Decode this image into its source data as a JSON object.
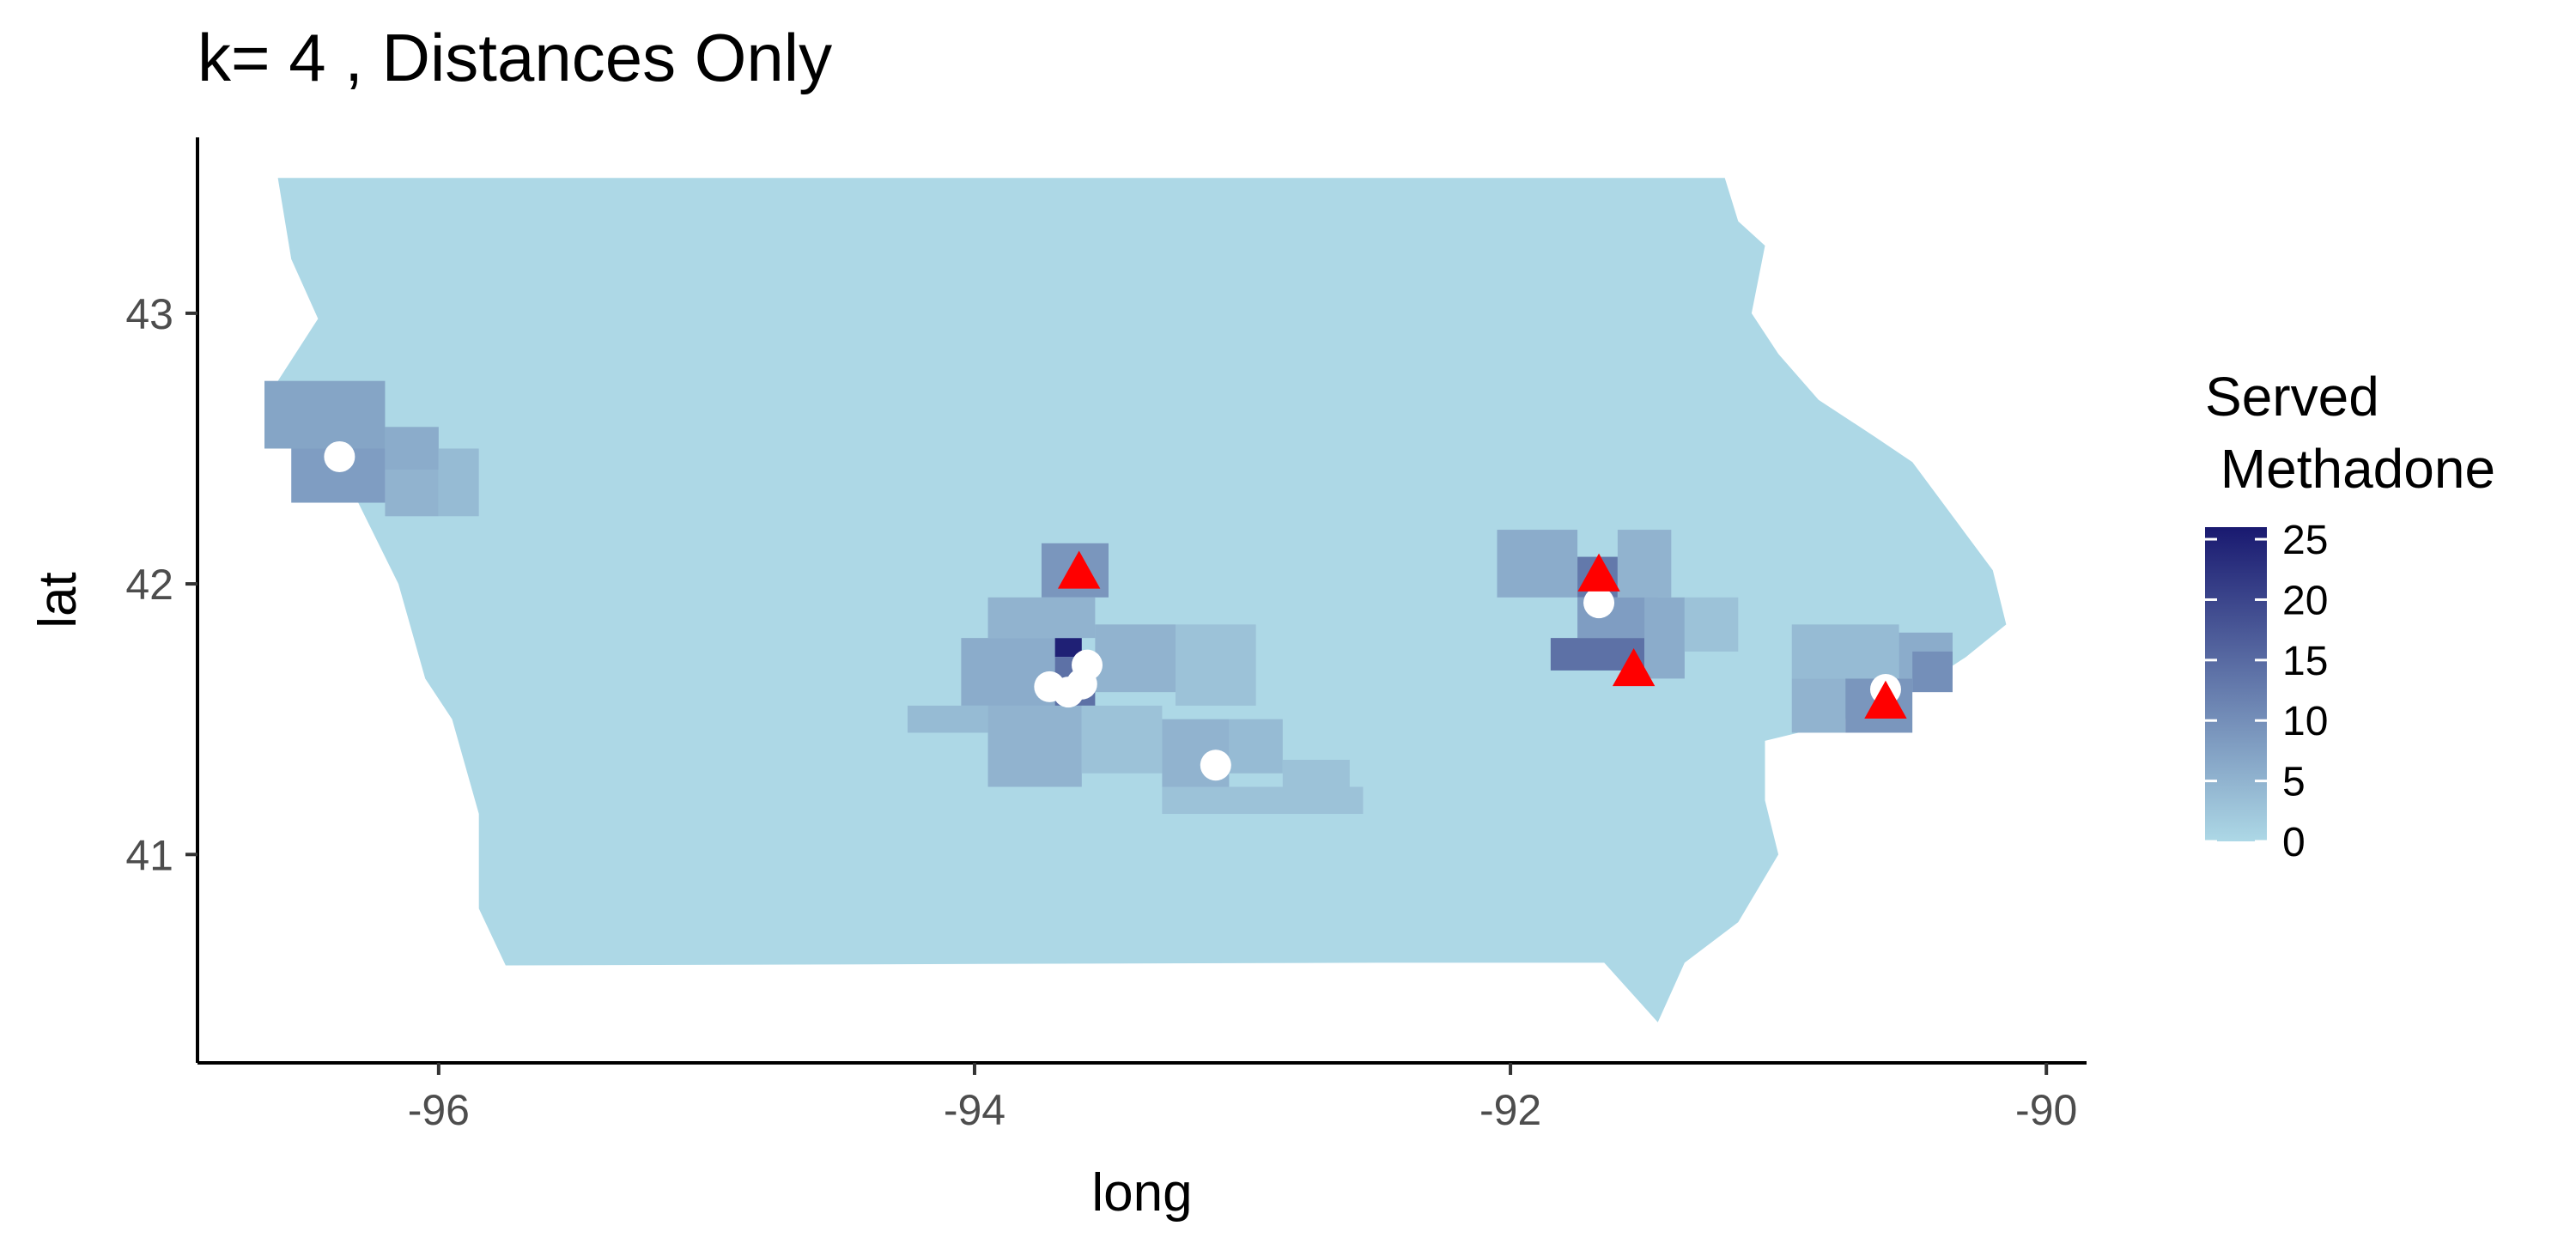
{
  "chart_data": {
    "type": "choropleth-map",
    "title": "k= 4 , Distances Only",
    "xlabel": "long",
    "ylabel": "lat",
    "xlim": [
      -96.9,
      -89.85
    ],
    "ylim": [
      40.23,
      43.65
    ],
    "x_ticks": [
      -96,
      -94,
      -92,
      -90
    ],
    "x_tick_labels": [
      "-96",
      "-94",
      "-92",
      "-90"
    ],
    "y_ticks": [
      41,
      42,
      43
    ],
    "y_tick_labels": [
      "41",
      "42",
      "43"
    ],
    "grid": false,
    "legend": {
      "title_lines": [
        "Served",
        " Methadone"
      ],
      "position": "right",
      "range": [
        0,
        26
      ],
      "ticks": [
        0,
        5,
        10,
        15,
        20,
        25
      ],
      "tick_labels": [
        "0",
        "5",
        "10",
        "15",
        "20",
        "25"
      ],
      "color_low": "#add8e6",
      "color_high": "#191970"
    },
    "base_fill": "#add8e6",
    "region_outline": [
      [
        -96.6,
        43.5
      ],
      [
        -91.2,
        43.5
      ],
      [
        -91.15,
        43.34
      ],
      [
        -91.05,
        43.25
      ],
      [
        -91.1,
        43.0
      ],
      [
        -91.0,
        42.85
      ],
      [
        -90.85,
        42.68
      ],
      [
        -90.65,
        42.55
      ],
      [
        -90.5,
        42.45
      ],
      [
        -90.35,
        42.25
      ],
      [
        -90.2,
        42.05
      ],
      [
        -90.15,
        41.85
      ],
      [
        -90.3,
        41.73
      ],
      [
        -90.5,
        41.6
      ],
      [
        -90.8,
        41.48
      ],
      [
        -91.05,
        41.42
      ],
      [
        -91.05,
        41.2
      ],
      [
        -91.0,
        41.0
      ],
      [
        -91.15,
        40.75
      ],
      [
        -91.35,
        40.6
      ],
      [
        -91.45,
        40.38
      ],
      [
        -91.65,
        40.6
      ],
      [
        -92.5,
        40.6
      ],
      [
        -95.75,
        40.59
      ],
      [
        -95.85,
        40.8
      ],
      [
        -95.85,
        41.15
      ],
      [
        -95.95,
        41.5
      ],
      [
        -96.05,
        41.65
      ],
      [
        -96.15,
        42.0
      ],
      [
        -96.25,
        42.2
      ],
      [
        -96.35,
        42.4
      ],
      [
        -96.5,
        42.6
      ],
      [
        -96.6,
        42.75
      ],
      [
        -96.45,
        42.98
      ],
      [
        -96.55,
        43.2
      ],
      [
        -96.6,
        43.5
      ]
    ],
    "served_tracts": [
      {
        "x0": -96.65,
        "x1": -96.2,
        "y0": 42.5,
        "y1": 42.75,
        "value": 7
      },
      {
        "x0": -96.55,
        "x1": -96.2,
        "y0": 42.3,
        "y1": 42.5,
        "value": 8
      },
      {
        "x0": -96.2,
        "x1": -96.0,
        "y0": 42.42,
        "y1": 42.58,
        "value": 6
      },
      {
        "x0": -96.2,
        "x1": -96.0,
        "y0": 42.25,
        "y1": 42.42,
        "value": 5
      },
      {
        "x0": -96.0,
        "x1": -95.85,
        "y0": 42.25,
        "y1": 42.5,
        "value": 4
      },
      {
        "x0": -93.75,
        "x1": -93.5,
        "y0": 41.95,
        "y1": 42.15,
        "value": 9
      },
      {
        "x0": -93.7,
        "x1": -93.6,
        "y0": 41.73,
        "y1": 41.8,
        "value": 25
      },
      {
        "x0": -93.7,
        "x1": -93.55,
        "y0": 41.55,
        "y1": 41.73,
        "value": 14
      },
      {
        "x0": -93.95,
        "x1": -93.55,
        "y0": 41.8,
        "y1": 41.95,
        "value": 5
      },
      {
        "x0": -94.05,
        "x1": -93.7,
        "y0": 41.55,
        "y1": 41.8,
        "value": 6
      },
      {
        "x0": -93.55,
        "x1": -93.25,
        "y0": 41.6,
        "y1": 41.85,
        "value": 5
      },
      {
        "x0": -93.25,
        "x1": -92.95,
        "y0": 41.55,
        "y1": 41.85,
        "value": 3
      },
      {
        "x0": -94.25,
        "x1": -93.95,
        "y0": 41.45,
        "y1": 41.55,
        "value": 4
      },
      {
        "x0": -93.95,
        "x1": -93.6,
        "y0": 41.25,
        "y1": 41.55,
        "value": 5
      },
      {
        "x0": -93.6,
        "x1": -93.3,
        "y0": 41.3,
        "y1": 41.55,
        "value": 3
      },
      {
        "x0": -93.3,
        "x1": -93.05,
        "y0": 41.25,
        "y1": 41.5,
        "value": 5
      },
      {
        "x0": -93.05,
        "x1": -92.85,
        "y0": 41.3,
        "y1": 41.5,
        "value": 4
      },
      {
        "x0": -93.3,
        "x1": -92.55,
        "y0": 41.15,
        "y1": 41.25,
        "value": 3
      },
      {
        "x0": -92.85,
        "x1": -92.6,
        "y0": 41.25,
        "y1": 41.35,
        "value": 3
      },
      {
        "x0": -92.05,
        "x1": -91.75,
        "y0": 41.95,
        "y1": 42.2,
        "value": 6
      },
      {
        "x0": -91.75,
        "x1": -91.6,
        "y0": 41.95,
        "y1": 42.1,
        "value": 13
      },
      {
        "x0": -91.6,
        "x1": -91.4,
        "y0": 41.95,
        "y1": 42.2,
        "value": 5
      },
      {
        "x0": -91.75,
        "x1": -91.45,
        "y0": 41.8,
        "y1": 41.95,
        "value": 8
      },
      {
        "x0": -91.85,
        "x1": -91.5,
        "y0": 41.68,
        "y1": 41.8,
        "value": 14
      },
      {
        "x0": -91.5,
        "x1": -91.35,
        "y0": 41.65,
        "y1": 41.95,
        "value": 6
      },
      {
        "x0": -91.35,
        "x1": -91.15,
        "y0": 41.75,
        "y1": 41.95,
        "value": 3
      },
      {
        "x0": -90.95,
        "x1": -90.55,
        "y0": 41.65,
        "y1": 41.85,
        "value": 4
      },
      {
        "x0": -90.55,
        "x1": -90.35,
        "y0": 41.65,
        "y1": 41.82,
        "value": 6
      },
      {
        "x0": -90.95,
        "x1": -90.75,
        "y0": 41.45,
        "y1": 41.65,
        "value": 5
      },
      {
        "x0": -90.75,
        "x1": -90.5,
        "y0": 41.45,
        "y1": 41.65,
        "value": 9
      },
      {
        "x0": -90.5,
        "x1": -90.35,
        "y0": 41.6,
        "y1": 41.75,
        "value": 10
      }
    ],
    "demand_points": [
      {
        "long": -96.37,
        "lat": 42.47
      },
      {
        "long": -93.72,
        "lat": 41.62
      },
      {
        "long": -93.65,
        "lat": 41.6
      },
      {
        "long": -93.6,
        "lat": 41.63
      },
      {
        "long": -93.58,
        "lat": 41.7
      },
      {
        "long": -93.1,
        "lat": 41.33
      },
      {
        "long": -91.67,
        "lat": 41.93
      },
      {
        "long": -90.6,
        "lat": 41.61
      }
    ],
    "facility_points": [
      {
        "long": -93.61,
        "lat": 42.04
      },
      {
        "long": -91.67,
        "lat": 42.03
      },
      {
        "long": -91.54,
        "lat": 41.68
      },
      {
        "long": -90.6,
        "lat": 41.56
      }
    ],
    "demand_color": "#ffffff",
    "facility_color": "#ff0000"
  }
}
